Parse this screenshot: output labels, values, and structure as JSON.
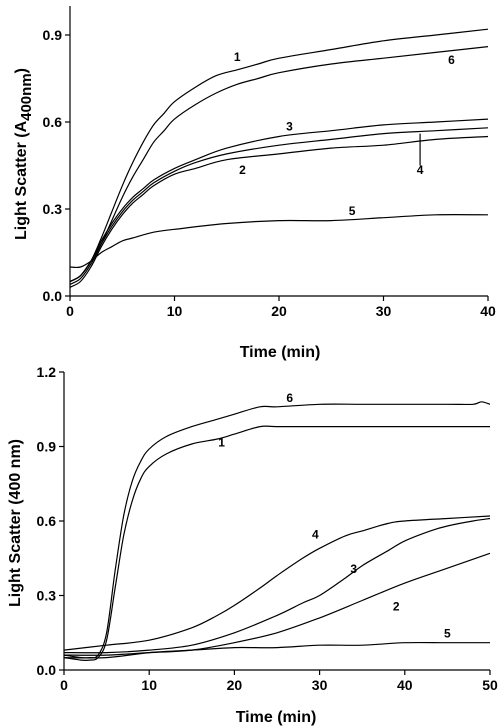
{
  "chart_data": [
    {
      "type": "line",
      "xlabel": "Time (min)",
      "ylabel_main": "Light Scatter (A",
      "ylabel_sub": "400nm",
      "ylabel_close": ")",
      "xlim": [
        0,
        40
      ],
      "ylim": [
        0,
        1.0
      ],
      "xticks": [
        "0",
        "10",
        "20",
        "30",
        "40"
      ],
      "yticks": [
        "0.0",
        "0.3",
        "0.6",
        "0.9"
      ],
      "grid": false,
      "series": [
        {
          "name": "1",
          "points": [
            [
              0,
              0.05
            ],
            [
              1,
              0.07
            ],
            [
              2,
              0.12
            ],
            [
              3,
              0.2
            ],
            [
              4,
              0.29
            ],
            [
              5,
              0.38
            ],
            [
              6,
              0.46
            ],
            [
              7,
              0.53
            ],
            [
              8,
              0.59
            ],
            [
              9,
              0.63
            ],
            [
              10,
              0.67
            ],
            [
              12,
              0.72
            ],
            [
              14,
              0.76
            ],
            [
              16,
              0.78
            ],
            [
              18,
              0.8
            ],
            [
              20,
              0.82
            ],
            [
              25,
              0.85
            ],
            [
              30,
              0.88
            ],
            [
              35,
              0.9
            ],
            [
              40,
              0.92
            ]
          ]
        },
        {
          "name": "6",
          "points": [
            [
              0,
              0.04
            ],
            [
              1,
              0.06
            ],
            [
              2,
              0.11
            ],
            [
              3,
              0.18
            ],
            [
              4,
              0.26
            ],
            [
              5,
              0.34
            ],
            [
              6,
              0.41
            ],
            [
              7,
              0.47
            ],
            [
              8,
              0.53
            ],
            [
              9,
              0.57
            ],
            [
              10,
              0.61
            ],
            [
              12,
              0.66
            ],
            [
              14,
              0.7
            ],
            [
              16,
              0.73
            ],
            [
              18,
              0.75
            ],
            [
              20,
              0.77
            ],
            [
              25,
              0.8
            ],
            [
              30,
              0.82
            ],
            [
              35,
              0.84
            ],
            [
              40,
              0.86
            ]
          ]
        },
        {
          "name": "3",
          "points": [
            [
              0,
              0.05
            ],
            [
              1,
              0.07
            ],
            [
              2,
              0.12
            ],
            [
              3,
              0.19
            ],
            [
              4,
              0.25
            ],
            [
              5,
              0.3
            ],
            [
              6,
              0.34
            ],
            [
              7,
              0.37
            ],
            [
              8,
              0.4
            ],
            [
              10,
              0.44
            ],
            [
              12,
              0.47
            ],
            [
              15,
              0.51
            ],
            [
              20,
              0.55
            ],
            [
              25,
              0.57
            ],
            [
              30,
              0.59
            ],
            [
              35,
              0.6
            ],
            [
              40,
              0.61
            ]
          ]
        },
        {
          "name": "4",
          "points": [
            [
              0,
              0.05
            ],
            [
              1,
              0.07
            ],
            [
              2,
              0.12
            ],
            [
              3,
              0.18
            ],
            [
              4,
              0.24
            ],
            [
              5,
              0.29
            ],
            [
              6,
              0.33
            ],
            [
              7,
              0.36
            ],
            [
              8,
              0.39
            ],
            [
              10,
              0.43
            ],
            [
              12,
              0.46
            ],
            [
              15,
              0.49
            ],
            [
              20,
              0.52
            ],
            [
              25,
              0.54
            ],
            [
              30,
              0.56
            ],
            [
              35,
              0.57
            ],
            [
              40,
              0.58
            ]
          ]
        },
        {
          "name": "2",
          "points": [
            [
              0,
              0.03
            ],
            [
              1,
              0.05
            ],
            [
              2,
              0.1
            ],
            [
              3,
              0.17
            ],
            [
              4,
              0.23
            ],
            [
              5,
              0.28
            ],
            [
              6,
              0.32
            ],
            [
              7,
              0.35
            ],
            [
              8,
              0.38
            ],
            [
              10,
              0.42
            ],
            [
              12,
              0.44
            ],
            [
              15,
              0.47
            ],
            [
              20,
              0.49
            ],
            [
              25,
              0.51
            ],
            [
              30,
              0.52
            ],
            [
              35,
              0.54
            ],
            [
              40,
              0.55
            ]
          ]
        },
        {
          "name": "5",
          "points": [
            [
              0,
              0.1
            ],
            [
              1,
              0.1
            ],
            [
              2,
              0.12
            ],
            [
              3,
              0.15
            ],
            [
              4,
              0.17
            ],
            [
              5,
              0.19
            ],
            [
              6,
              0.2
            ],
            [
              8,
              0.22
            ],
            [
              10,
              0.23
            ],
            [
              15,
              0.25
            ],
            [
              20,
              0.26
            ],
            [
              25,
              0.26
            ],
            [
              30,
              0.27
            ],
            [
              35,
              0.28
            ],
            [
              40,
              0.28
            ]
          ]
        }
      ],
      "labels": [
        {
          "text": "1",
          "x": 16,
          "y": 0.81
        },
        {
          "text": "6",
          "x": 36.5,
          "y": 0.8
        },
        {
          "text": "3",
          "x": 21,
          "y": 0.57
        },
        {
          "text": "2",
          "x": 16.5,
          "y": 0.42
        },
        {
          "text": "4",
          "x": 33.5,
          "y": 0.42
        },
        {
          "text": "5",
          "x": 27,
          "y": 0.28
        }
      ]
    },
    {
      "type": "line",
      "xlabel": "Time (min)",
      "ylabel": "Light Scatter (400 nm)",
      "xlim": [
        0,
        50
      ],
      "ylim": [
        0,
        1.2
      ],
      "xticks": [
        "0",
        "10",
        "20",
        "30",
        "40",
        "50"
      ],
      "yticks": [
        "0.0",
        "0.3",
        "0.6",
        "0.9",
        "1.2"
      ],
      "grid": false,
      "series": [
        {
          "name": "6",
          "points": [
            [
              0,
              0.06
            ],
            [
              2,
              0.05
            ],
            [
              3,
              0.05
            ],
            [
              4,
              0.06
            ],
            [
              5,
              0.15
            ],
            [
              6,
              0.4
            ],
            [
              7,
              0.62
            ],
            [
              8,
              0.76
            ],
            [
              9,
              0.84
            ],
            [
              10,
              0.89
            ],
            [
              12,
              0.94
            ],
            [
              15,
              0.98
            ],
            [
              18,
              1.01
            ],
            [
              20,
              1.03
            ],
            [
              23,
              1.06
            ],
            [
              25,
              1.06
            ],
            [
              30,
              1.07
            ],
            [
              35,
              1.07
            ],
            [
              40,
              1.07
            ],
            [
              45,
              1.07
            ],
            [
              48,
              1.07
            ],
            [
              49,
              1.08
            ],
            [
              50,
              1.07
            ]
          ]
        },
        {
          "name": "1",
          "points": [
            [
              0,
              0.05
            ],
            [
              2,
              0.04
            ],
            [
              3,
              0.04
            ],
            [
              4,
              0.05
            ],
            [
              5,
              0.12
            ],
            [
              6,
              0.33
            ],
            [
              7,
              0.54
            ],
            [
              8,
              0.68
            ],
            [
              9,
              0.77
            ],
            [
              10,
              0.82
            ],
            [
              12,
              0.87
            ],
            [
              15,
              0.91
            ],
            [
              18,
              0.93
            ],
            [
              20,
              0.95
            ],
            [
              23,
              0.98
            ],
            [
              25,
              0.98
            ],
            [
              30,
              0.98
            ],
            [
              35,
              0.98
            ],
            [
              40,
              0.98
            ],
            [
              45,
              0.98
            ],
            [
              50,
              0.98
            ]
          ]
        },
        {
          "name": "4",
          "points": [
            [
              0,
              0.08
            ],
            [
              5,
              0.1
            ],
            [
              10,
              0.12
            ],
            [
              15,
              0.17
            ],
            [
              18,
              0.22
            ],
            [
              20,
              0.26
            ],
            [
              23,
              0.33
            ],
            [
              25,
              0.38
            ],
            [
              28,
              0.45
            ],
            [
              30,
              0.49
            ],
            [
              33,
              0.54
            ],
            [
              35,
              0.56
            ],
            [
              38,
              0.59
            ],
            [
              40,
              0.6
            ],
            [
              45,
              0.61
            ],
            [
              50,
              0.62
            ]
          ]
        },
        {
          "name": "3",
          "points": [
            [
              0,
              0.07
            ],
            [
              5,
              0.07
            ],
            [
              10,
              0.08
            ],
            [
              15,
              0.1
            ],
            [
              20,
              0.15
            ],
            [
              25,
              0.22
            ],
            [
              28,
              0.27
            ],
            [
              30,
              0.3
            ],
            [
              33,
              0.37
            ],
            [
              35,
              0.42
            ],
            [
              38,
              0.48
            ],
            [
              40,
              0.52
            ],
            [
              43,
              0.56
            ],
            [
              45,
              0.58
            ],
            [
              48,
              0.6
            ],
            [
              50,
              0.61
            ]
          ]
        },
        {
          "name": "2",
          "points": [
            [
              0,
              0.06
            ],
            [
              5,
              0.06
            ],
            [
              10,
              0.07
            ],
            [
              15,
              0.08
            ],
            [
              20,
              0.11
            ],
            [
              25,
              0.15
            ],
            [
              30,
              0.21
            ],
            [
              35,
              0.28
            ],
            [
              40,
              0.35
            ],
            [
              45,
              0.41
            ],
            [
              50,
              0.47
            ]
          ]
        },
        {
          "name": "5",
          "points": [
            [
              0,
              0.05
            ],
            [
              5,
              0.05
            ],
            [
              10,
              0.07
            ],
            [
              15,
              0.08
            ],
            [
              20,
              0.09
            ],
            [
              25,
              0.09
            ],
            [
              30,
              0.1
            ],
            [
              35,
              0.1
            ],
            [
              40,
              0.11
            ],
            [
              45,
              0.11
            ],
            [
              50,
              0.11
            ]
          ]
        }
      ],
      "labels": [
        {
          "text": "6",
          "x": 26.5,
          "y": 1.08
        },
        {
          "text": "1",
          "x": 18.5,
          "y": 0.9
        },
        {
          "text": "4",
          "x": 29.5,
          "y": 0.53
        },
        {
          "text": "3",
          "x": 34,
          "y": 0.39
        },
        {
          "text": "2",
          "x": 39,
          "y": 0.24
        },
        {
          "text": "5",
          "x": 45,
          "y": 0.13
        }
      ]
    }
  ]
}
